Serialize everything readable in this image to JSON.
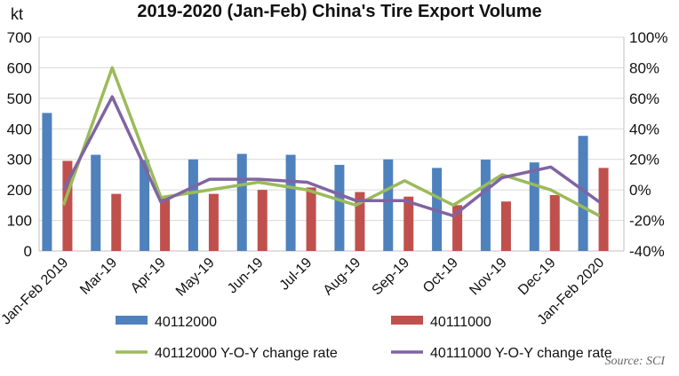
{
  "chart_data": {
    "type": "bar",
    "title": "2019-2020 (Jan-Feb) China's Tire Export Volume",
    "y_unit": "kt",
    "categories": [
      "Jan-Feb 2019",
      "Mar-19",
      "Apr-19",
      "May-19",
      "Jun-19",
      "Jul-19",
      "Aug-19",
      "Sep-19",
      "Oct-19",
      "Nov-19",
      "Dec-19",
      "Jan-Feb 2020"
    ],
    "ylim": [
      0,
      700
    ],
    "y_ticks": [
      "0",
      "100",
      "200",
      "300",
      "400",
      "500",
      "600",
      "700"
    ],
    "y2lim": [
      -40,
      100
    ],
    "y2_ticks": [
      "-40%",
      "-20%",
      "0%",
      "20%",
      "40%",
      "60%",
      "80%",
      "100%"
    ],
    "grid": true,
    "legend_position": "bottom",
    "series": [
      {
        "name": "40112000",
        "kind": "bar",
        "axis": "left",
        "color": "#4F81BD",
        "values": [
          452,
          315,
          298,
          300,
          318,
          315,
          282,
          300,
          272,
          299,
          290,
          377
        ]
      },
      {
        "name": "40111000",
        "kind": "bar",
        "axis": "left",
        "color": "#C0504D",
        "values": [
          295,
          187,
          177,
          187,
          200,
          208,
          193,
          178,
          150,
          162,
          183,
          272
        ]
      },
      {
        "name": "40112000 Y-O-Y change rate",
        "kind": "line",
        "axis": "right",
        "color": "#9BBB59",
        "values": [
          -10,
          80,
          -5,
          0,
          5,
          0,
          -10,
          6,
          -10,
          10,
          0,
          -17
        ]
      },
      {
        "name": "40111000 Y-O-Y change rate",
        "kind": "line",
        "axis": "right",
        "color": "#8064A2",
        "values": [
          0,
          61,
          -8,
          7,
          7,
          5,
          -7,
          -7,
          -17,
          8,
          15,
          -8
        ]
      }
    ],
    "source": "Source: SCI"
  }
}
